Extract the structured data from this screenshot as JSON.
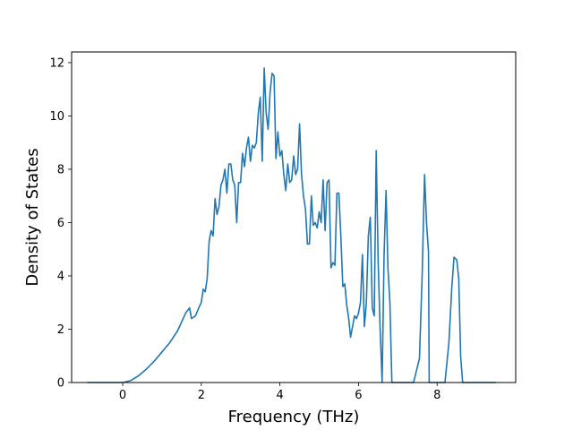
{
  "chart_data": {
    "type": "line",
    "title": "",
    "xlabel": "Frequency (THz)",
    "ylabel": "Density of States",
    "xlim": [
      -1.3,
      10.0
    ],
    "ylim": [
      0,
      12.4
    ],
    "xticks": [
      0,
      2,
      4,
      6,
      8
    ],
    "yticks": [
      0,
      2,
      4,
      6,
      8,
      10,
      12
    ],
    "grid": false,
    "legend": "none",
    "series": [
      {
        "color": "#1f77b4",
        "x": [
          -0.9,
          -0.6,
          -0.3,
          0.0,
          0.2,
          0.4,
          0.6,
          0.8,
          1.0,
          1.2,
          1.4,
          1.6,
          1.7,
          1.75,
          1.85,
          1.95,
          2.0,
          2.05,
          2.1,
          2.15,
          2.2,
          2.25,
          2.3,
          2.35,
          2.4,
          2.45,
          2.5,
          2.55,
          2.6,
          2.65,
          2.7,
          2.75,
          2.8,
          2.85,
          2.9,
          2.95,
          3.0,
          3.05,
          3.1,
          3.15,
          3.2,
          3.25,
          3.3,
          3.35,
          3.4,
          3.45,
          3.5,
          3.55,
          3.6,
          3.65,
          3.7,
          3.75,
          3.8,
          3.85,
          3.9,
          3.95,
          4.0,
          4.05,
          4.1,
          4.15,
          4.2,
          4.25,
          4.3,
          4.35,
          4.4,
          4.45,
          4.5,
          4.55,
          4.6,
          4.65,
          4.7,
          4.75,
          4.8,
          4.85,
          4.9,
          4.95,
          5.0,
          5.05,
          5.1,
          5.15,
          5.2,
          5.25,
          5.3,
          5.35,
          5.4,
          5.45,
          5.5,
          5.55,
          5.6,
          5.65,
          5.7,
          5.75,
          5.8,
          5.85,
          5.9,
          5.95,
          6.0,
          6.05,
          6.1,
          6.15,
          6.2,
          6.25,
          6.3,
          6.35,
          6.4,
          6.45,
          6.5,
          6.55,
          6.6,
          6.65,
          6.7,
          6.75,
          6.8,
          6.85,
          6.9,
          7.0,
          7.2,
          7.4,
          7.55,
          7.62,
          7.68,
          7.73,
          7.78,
          7.8,
          7.85,
          8.0,
          8.2,
          8.3,
          8.37,
          8.43,
          8.5,
          8.55,
          8.6,
          8.65,
          8.7,
          9.0,
          9.5
        ],
        "y": [
          0,
          0,
          0,
          0,
          0.07,
          0.25,
          0.5,
          0.8,
          1.15,
          1.5,
          1.95,
          2.6,
          2.8,
          2.4,
          2.5,
          2.85,
          3.0,
          3.5,
          3.4,
          3.9,
          5.3,
          5.7,
          5.5,
          6.9,
          6.3,
          6.6,
          7.4,
          7.6,
          8.0,
          7.1,
          8.2,
          8.2,
          7.6,
          7.4,
          6.0,
          7.5,
          7.5,
          8.6,
          8.1,
          8.8,
          9.2,
          8.3,
          8.9,
          8.8,
          9.0,
          10.1,
          10.7,
          8.3,
          11.8,
          10.1,
          9.5,
          10.9,
          11.6,
          11.5,
          8.4,
          9.4,
          8.5,
          8.7,
          7.8,
          7.2,
          8.2,
          7.5,
          7.6,
          8.5,
          7.8,
          8.0,
          9.7,
          7.8,
          7.0,
          6.5,
          5.2,
          5.2,
          7.0,
          5.9,
          6.0,
          5.8,
          6.4,
          6.0,
          7.6,
          5.7,
          7.5,
          7.6,
          4.3,
          4.5,
          4.4,
          7.1,
          7.1,
          5.5,
          3.6,
          3.7,
          2.9,
          2.4,
          1.7,
          2.1,
          2.5,
          2.4,
          2.6,
          3.0,
          4.8,
          2.1,
          3.0,
          5.5,
          6.2,
          2.8,
          2.5,
          8.7,
          4.5,
          2.0,
          0,
          4.8,
          7.2,
          4.3,
          3.0,
          0,
          0,
          0,
          0,
          0,
          0.9,
          4.0,
          7.8,
          6.0,
          4.9,
          0,
          0,
          0,
          0,
          1.5,
          3.5,
          4.7,
          4.6,
          3.9,
          1.0,
          0,
          0,
          0,
          0
        ]
      }
    ]
  }
}
